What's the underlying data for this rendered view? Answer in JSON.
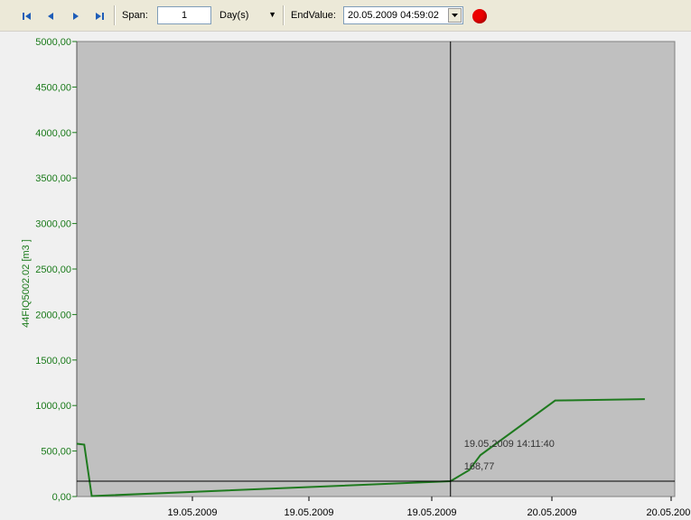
{
  "toolbar": {
    "nav": [
      {
        "name": "first-button"
      },
      {
        "name": "prev-button"
      },
      {
        "name": "next-button"
      },
      {
        "name": "last-button"
      }
    ],
    "span_label": "Span:",
    "span_value": "1",
    "span_unit": "Day(s)",
    "end_label": "EndValue:",
    "end_value": "20.05.2009 04:59:02",
    "record_color": "#ec0000"
  },
  "chart_data": {
    "type": "line",
    "ylabel": "44FIQ5002.02 [m3   ]",
    "ylim": [
      0,
      5000
    ],
    "yticks": [
      "0,00",
      "500,00",
      "1000,00",
      "1500,00",
      "2000,00",
      "2500,00",
      "3000,00",
      "3500,00",
      "4000,00",
      "4500,00",
      "5000,00"
    ],
    "xticks": [
      "19.05.2009",
      "19.05.2009",
      "19.05.2009",
      "20.05.2009",
      "20.05.2009"
    ],
    "series": [
      {
        "color": "#1f7a1f",
        "x": [
          0,
          0.02,
          0.04,
          1.0,
          1.05,
          1.08,
          1.28,
          1.52
        ],
        "values": [
          580,
          570,
          5,
          168.77,
          290,
          455,
          1055,
          1070
        ]
      }
    ],
    "cursor": {
      "time": "19.05.2009 14:11:40",
      "value": "168,77",
      "x": 1.0,
      "y": 168.77
    },
    "grid": false,
    "plot_bg": "#c0c0c0"
  }
}
